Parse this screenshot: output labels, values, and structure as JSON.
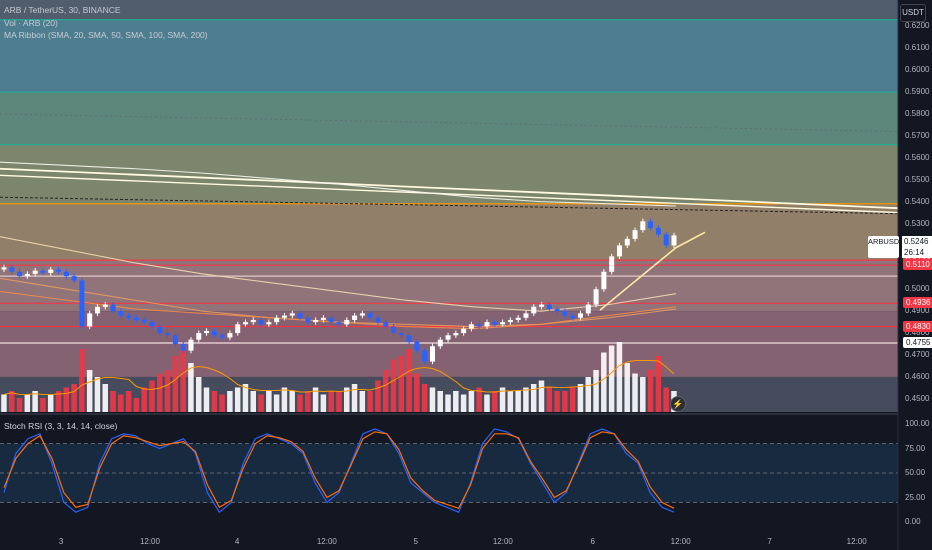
{
  "legend": {
    "symbol_line": "ARB / TetherUS, 30, BINANCE",
    "vol_line": "Vol · ARB (20)",
    "ma_line": "MA Ribbon (SMA, 20, SMA, 50, SMA, 100, SMA, 200)"
  },
  "currency_label": "USDT",
  "rsi_title": "Stoch RSI (3, 3, 14, 14, close)",
  "ticker": {
    "symbol": "ARBUSDT",
    "countdown": "26:14",
    "price": "0.5246"
  },
  "price_tags": [
    {
      "value": "0.5133",
      "color": "#f23645"
    },
    {
      "value": "0.5110",
      "color": "#f23645"
    },
    {
      "value": "0.4936",
      "color": "#f23645"
    },
    {
      "value": "0.4830",
      "color": "#f23645"
    },
    {
      "value": "0.4755",
      "color": "#ffffff"
    }
  ],
  "flash_icon": "lightning-icon",
  "chart_data": {
    "type": "candlestick",
    "price_axis": {
      "ylim": [
        0.444,
        0.632
      ],
      "ticks": [
        "0.6200",
        "0.6100",
        "0.6000",
        "0.5900",
        "0.5800",
        "0.5700",
        "0.5600",
        "0.5500",
        "0.5400",
        "0.5300",
        "0.5200",
        "0.5100",
        "0.5000",
        "0.4900",
        "0.4800",
        "0.4700",
        "0.4600",
        "0.4500"
      ]
    },
    "x_axis": {
      "range": [
        0,
        100
      ],
      "ticks": [
        {
          "label": "3",
          "x": 6.8
        },
        {
          "label": "12:00",
          "x": 16.7
        },
        {
          "label": "4",
          "x": 26.4
        },
        {
          "label": "12:00",
          "x": 36.4
        },
        {
          "label": "5",
          "x": 46.3
        },
        {
          "label": "12:00",
          "x": 56.0
        },
        {
          "label": "6",
          "x": 66.0
        },
        {
          "label": "12:00",
          "x": 75.8
        },
        {
          "label": "7",
          "x": 85.7
        },
        {
          "label": "12:00",
          "x": 95.4
        }
      ]
    },
    "zones": [
      {
        "from": 0.632,
        "to": 0.623,
        "color": "#5d6a7a"
      },
      {
        "from": 0.623,
        "to": 0.59,
        "color": "#5a8fa3"
      },
      {
        "from": 0.59,
        "to": 0.566,
        "color": "#6c9b8c"
      },
      {
        "from": 0.566,
        "to": 0.539,
        "color": "#8f9a7a"
      },
      {
        "from": 0.539,
        "to": 0.5133,
        "color": "#a89276"
      },
      {
        "from": 0.5133,
        "to": 0.49,
        "color": "#a7858a"
      },
      {
        "from": 0.49,
        "to": 0.46,
        "color": "#9a7080"
      },
      {
        "from": 0.46,
        "to": 0.444,
        "color": "#505568"
      }
    ],
    "levels": [
      {
        "value": 0.623,
        "color": "#22ab94"
      },
      {
        "value": 0.59,
        "color": "#22ab94"
      },
      {
        "value": 0.566,
        "color": "#22ab94"
      },
      {
        "value": 0.539,
        "color": "#ff9800"
      },
      {
        "value": 0.5133,
        "color": "#f23645"
      },
      {
        "value": 0.511,
        "color": "#f23645"
      },
      {
        "value": 0.506,
        "color": "#e0c8c8"
      },
      {
        "value": 0.4936,
        "color": "#f23645"
      },
      {
        "value": 0.483,
        "color": "#f23645"
      },
      {
        "value": 0.4755,
        "color": "#f0e0e0"
      }
    ],
    "candles": [
      0.51,
      0.508,
      0.506,
      0.507,
      0.5085,
      0.5075,
      0.509,
      0.508,
      0.506,
      0.504,
      0.483,
      0.489,
      0.492,
      0.493,
      0.49,
      0.488,
      0.487,
      0.486,
      0.485,
      0.483,
      0.48,
      0.479,
      0.475,
      0.472,
      0.477,
      0.48,
      0.481,
      0.479,
      0.478,
      0.48,
      0.484,
      0.485,
      0.486,
      0.484,
      0.485,
      0.487,
      0.488,
      0.489,
      0.487,
      0.485,
      0.486,
      0.487,
      0.485,
      0.484,
      0.486,
      0.488,
      0.489,
      0.487,
      0.485,
      0.483,
      0.48,
      0.479,
      0.476,
      0.472,
      0.467,
      0.474,
      0.477,
      0.479,
      0.48,
      0.482,
      0.484,
      0.483,
      0.485,
      0.484,
      0.485,
      0.486,
      0.487,
      0.489,
      0.492,
      0.493,
      0.491,
      0.49,
      0.488,
      0.487,
      0.489,
      0.493,
      0.5,
      0.508,
      0.515,
      0.52,
      0.523,
      0.527,
      0.531,
      0.528,
      0.525,
      0.52,
      0.5246
    ],
    "volume": [
      0.25,
      0.3,
      0.2,
      0.25,
      0.3,
      0.2,
      0.25,
      0.3,
      0.35,
      0.4,
      0.9,
      0.6,
      0.5,
      0.4,
      0.3,
      0.25,
      0.3,
      0.2,
      0.35,
      0.45,
      0.55,
      0.6,
      0.8,
      0.95,
      0.7,
      0.5,
      0.35,
      0.3,
      0.25,
      0.3,
      0.35,
      0.4,
      0.3,
      0.25,
      0.3,
      0.25,
      0.35,
      0.3,
      0.25,
      0.3,
      0.35,
      0.25,
      0.3,
      0.3,
      0.35,
      0.4,
      0.3,
      0.3,
      0.45,
      0.6,
      0.75,
      0.8,
      0.9,
      0.55,
      0.4,
      0.35,
      0.3,
      0.25,
      0.3,
      0.25,
      0.3,
      0.35,
      0.25,
      0.3,
      0.35,
      0.3,
      0.3,
      0.35,
      0.4,
      0.45,
      0.35,
      0.3,
      0.3,
      0.35,
      0.4,
      0.5,
      0.6,
      0.85,
      0.95,
      1.0,
      0.7,
      0.55,
      0.5,
      0.6,
      0.8,
      0.35,
      0.3
    ],
    "ma_lines": [
      {
        "color": "#f7f7f0",
        "values": [
          0.558,
          0.5565,
          0.555,
          0.553,
          0.5505,
          0.548,
          0.545,
          0.542,
          0.54,
          0.539,
          0.538
        ]
      },
      {
        "color": "#f3d8b0",
        "values": [
          0.524,
          0.518,
          0.512,
          0.507,
          0.503,
          0.499,
          0.495,
          0.492,
          0.49,
          0.493,
          0.498
        ]
      },
      {
        "color": "#e89a60",
        "values": [
          0.505,
          0.5,
          0.495,
          0.49,
          0.487,
          0.485,
          0.484,
          0.483,
          0.484,
          0.487,
          0.491
        ]
      },
      {
        "color": "#f28c4a",
        "values": [
          0.499,
          0.495,
          0.491,
          0.489,
          0.487,
          0.485,
          0.483,
          0.482,
          0.484,
          0.488,
          0.492
        ]
      }
    ],
    "rsi": {
      "ylim": [
        0,
        100
      ],
      "ticks": [
        "100.00",
        "75.00",
        "50.00",
        "25.00",
        "0.00"
      ],
      "k": [
        30,
        70,
        85,
        90,
        60,
        20,
        10,
        15,
        60,
        85,
        90,
        88,
        80,
        75,
        80,
        85,
        70,
        30,
        10,
        20,
        60,
        85,
        90,
        85,
        80,
        70,
        40,
        20,
        30,
        60,
        90,
        95,
        90,
        70,
        40,
        30,
        20,
        15,
        10,
        40,
        80,
        95,
        92,
        85,
        60,
        40,
        20,
        30,
        60,
        90,
        95,
        90,
        70,
        60,
        30,
        15,
        10
      ],
      "d": [
        35,
        65,
        80,
        88,
        65,
        30,
        15,
        18,
        55,
        80,
        88,
        86,
        82,
        78,
        80,
        82,
        72,
        38,
        15,
        22,
        55,
        80,
        88,
        86,
        82,
        72,
        45,
        25,
        32,
        58,
        85,
        92,
        90,
        74,
        45,
        32,
        22,
        18,
        14,
        38,
        75,
        90,
        90,
        86,
        62,
        44,
        25,
        32,
        58,
        86,
        92,
        90,
        74,
        62,
        36,
        20,
        14
      ]
    }
  }
}
